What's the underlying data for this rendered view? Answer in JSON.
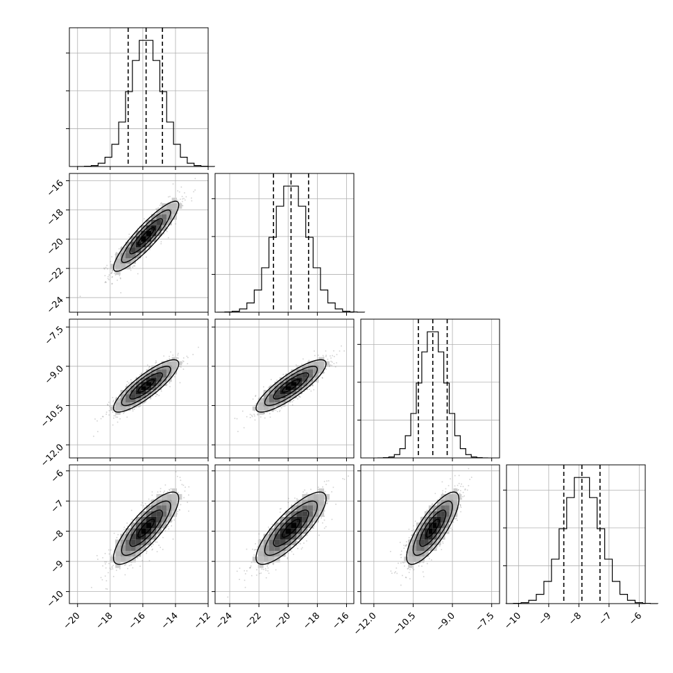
{
  "chart_data": {
    "type": "corner",
    "params": [
      {
        "mean": -15.8,
        "sd": 1.0,
        "range": [
          -20.5,
          -12.0
        ],
        "ticks": [
          -20,
          -18,
          -16,
          -14,
          -12
        ],
        "tick_labels": [
          "−20",
          "−18",
          "−16",
          "−14",
          "−12"
        ],
        "quantiles": [
          -16.9,
          -15.8,
          -14.8
        ]
      },
      {
        "mean": -19.8,
        "sd": 1.2,
        "range": [
          -25.0,
          -15.5
        ],
        "ticks": [
          -24,
          -22,
          -20,
          -18,
          -16
        ],
        "tick_labels": [
          "−24",
          "−22",
          "−20",
          "−18",
          "−16"
        ],
        "quantiles": [
          -21.0,
          -19.8,
          -18.6
        ]
      },
      {
        "mean": -9.75,
        "sd": 0.5,
        "range": [
          -12.5,
          -7.2
        ],
        "ticks": [
          -12.0,
          -10.5,
          -9.0,
          -7.5
        ],
        "tick_labels": [
          "−12.0",
          "−10.5",
          "−9.0",
          "−7.5"
        ],
        "quantiles": [
          -10.3,
          -9.75,
          -9.2
        ]
      },
      {
        "mean": -7.9,
        "sd": 0.6,
        "range": [
          -10.4,
          -5.8
        ],
        "ticks": [
          -10,
          -9,
          -8,
          -7,
          -6
        ],
        "tick_labels": [
          "−10",
          "−9",
          "−8",
          "−7",
          "−6"
        ],
        "quantiles": [
          -8.5,
          -7.9,
          -7.3
        ]
      }
    ],
    "correlation": [
      [
        1.0,
        0.9,
        0.85,
        0.82
      ],
      [
        0.9,
        1.0,
        0.85,
        0.82
      ],
      [
        0.85,
        0.85,
        1.0,
        0.8
      ],
      [
        0.82,
        0.82,
        0.8,
        1.0
      ]
    ],
    "histogram_bins": 20,
    "contour_levels_sigma": [
      0.5,
      1.0,
      1.5,
      2.0
    ],
    "grid": true,
    "colors": {
      "line": "#000000",
      "samples": "#7a7a7a",
      "grid": "#b0b0b0"
    }
  }
}
